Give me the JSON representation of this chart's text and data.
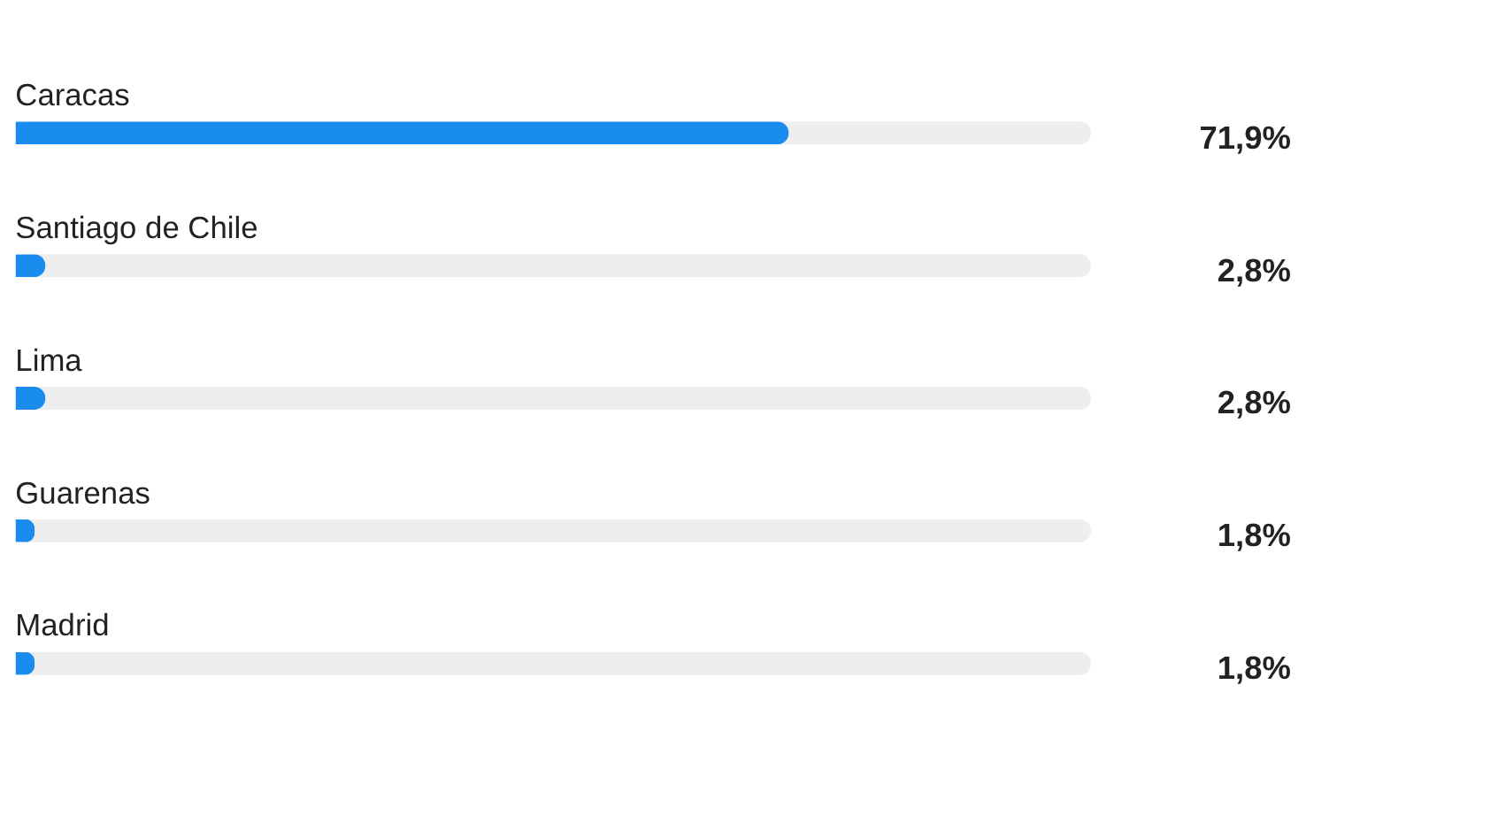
{
  "chart_data": {
    "type": "bar",
    "orientation": "horizontal",
    "categories": [
      "Caracas",
      "Santiago de Chile",
      "Lima",
      "Guarenas",
      "Madrid"
    ],
    "values": [
      71.9,
      2.8,
      2.8,
      1.8,
      1.8
    ],
    "value_labels": [
      "71,9%",
      "2,8%",
      "2,8%",
      "1,8%",
      "1,8%"
    ],
    "color": "#1a8cf0",
    "xlim": [
      0,
      100
    ],
    "tick_labels": false,
    "bands": [
      {
        "axis": "x",
        "from": 0,
        "to": 100
      }
    ]
  }
}
